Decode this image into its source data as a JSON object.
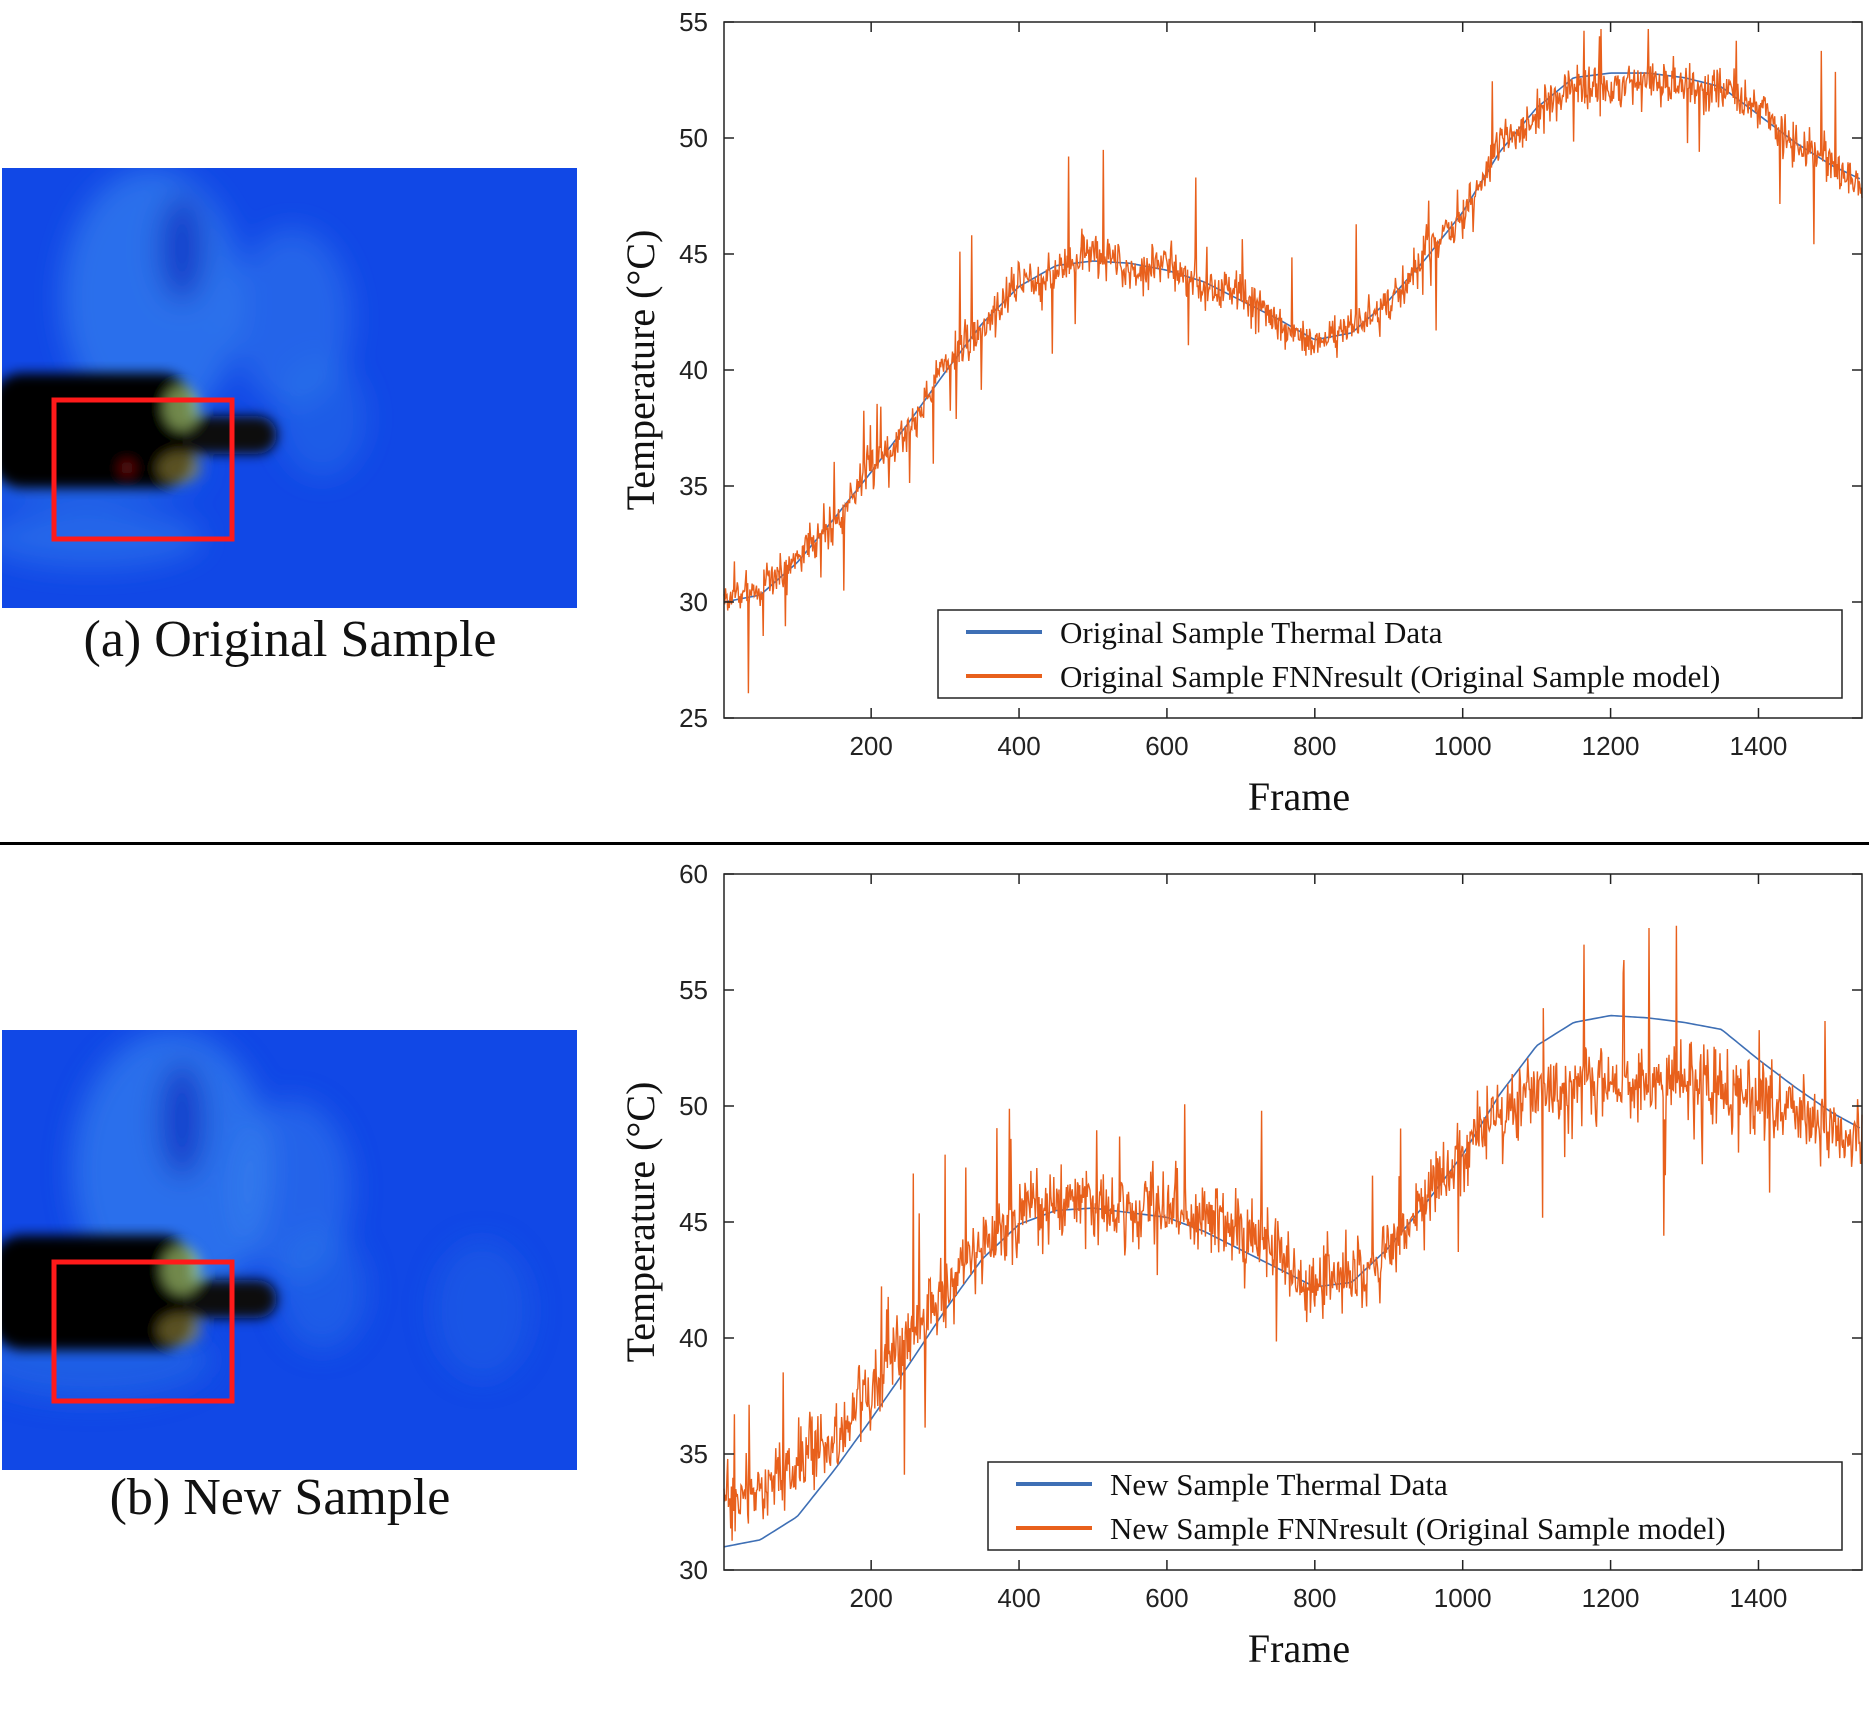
{
  "panels": {
    "a": {
      "caption": "(a) Original Sample"
    },
    "b": {
      "caption": "(b) New Sample"
    }
  },
  "chart_data": [
    {
      "type": "line",
      "title": "",
      "xlabel": "Frame",
      "ylabel": "Temperature (°C)",
      "xlim": [
        1,
        1540
      ],
      "ylim": [
        25,
        55
      ],
      "xticks": [
        200,
        400,
        600,
        800,
        1000,
        1200,
        1400
      ],
      "yticks": [
        25,
        30,
        35,
        40,
        45,
        50,
        55
      ],
      "legend_position": "bottom-right",
      "series": [
        {
          "name": "Original Sample Thermal Data",
          "color": "#3e6fb5",
          "x": [
            1,
            50,
            100,
            150,
            200,
            250,
            300,
            350,
            400,
            450,
            500,
            550,
            600,
            650,
            700,
            750,
            800,
            850,
            900,
            950,
            1000,
            1050,
            1100,
            1150,
            1200,
            1250,
            1300,
            1350,
            1400,
            1450,
            1500,
            1540
          ],
          "values": [
            30.0,
            30.3,
            31.7,
            33.6,
            35.6,
            37.7,
            39.9,
            42.0,
            43.6,
            44.5,
            44.7,
            44.6,
            44.3,
            43.8,
            43.0,
            42.2,
            41.3,
            41.6,
            43.0,
            44.8,
            46.8,
            49.4,
            51.3,
            52.6,
            52.8,
            52.8,
            52.6,
            52.2,
            51.0,
            49.8,
            48.8,
            48.2
          ]
        },
        {
          "name": "Original Sample FNNresult (Original Sample model)",
          "color": "#e8601c",
          "x": [
            1,
            50,
            100,
            150,
            200,
            250,
            300,
            350,
            400,
            450,
            500,
            550,
            600,
            650,
            700,
            750,
            800,
            850,
            900,
            950,
            1000,
            1050,
            1100,
            1150,
            1200,
            1250,
            1300,
            1350,
            1400,
            1450,
            1500,
            1540
          ],
          "values": [
            30.1,
            30.5,
            32.0,
            33.4,
            35.9,
            37.4,
            40.3,
            41.8,
            43.9,
            44.2,
            45.1,
            44.3,
            44.6,
            43.5,
            43.4,
            41.9,
            41.0,
            42.0,
            42.6,
            45.2,
            46.4,
            49.8,
            50.9,
            52.3,
            52.0,
            52.5,
            52.3,
            52.0,
            51.3,
            49.6,
            48.9,
            48.0
          ]
        }
      ]
    },
    {
      "type": "line",
      "title": "",
      "xlabel": "Frame",
      "ylabel": "Temperature (°C)",
      "xlim": [
        1,
        1540
      ],
      "ylim": [
        30,
        60
      ],
      "xticks": [
        200,
        400,
        600,
        800,
        1000,
        1200,
        1400
      ],
      "yticks": [
        30,
        35,
        40,
        45,
        50,
        55,
        60
      ],
      "legend_position": "bottom-right",
      "series": [
        {
          "name": "New Sample Thermal Data",
          "color": "#3e6fb5",
          "x": [
            1,
            50,
            100,
            150,
            200,
            250,
            300,
            350,
            400,
            450,
            500,
            550,
            600,
            650,
            700,
            750,
            800,
            850,
            900,
            950,
            1000,
            1050,
            1100,
            1150,
            1200,
            1250,
            1300,
            1350,
            1400,
            1450,
            1500,
            1540
          ],
          "values": [
            31.0,
            31.3,
            32.3,
            34.3,
            36.5,
            38.8,
            41.2,
            43.4,
            44.9,
            45.5,
            45.6,
            45.4,
            45.2,
            44.6,
            43.8,
            43.0,
            42.2,
            42.4,
            43.9,
            45.8,
            47.9,
            50.5,
            52.6,
            53.6,
            53.9,
            53.8,
            53.6,
            53.3,
            52.0,
            50.8,
            49.7,
            49.0
          ]
        },
        {
          "name": "New Sample FNNresult (Original Sample model)",
          "color": "#e8601c",
          "x": [
            1,
            50,
            100,
            150,
            200,
            250,
            300,
            350,
            400,
            450,
            500,
            550,
            600,
            650,
            700,
            750,
            800,
            850,
            900,
            950,
            1000,
            1050,
            1100,
            1150,
            1200,
            1250,
            1300,
            1350,
            1400,
            1450,
            1500,
            1540
          ],
          "values": [
            33.0,
            33.5,
            34.2,
            35.6,
            37.9,
            40.0,
            42.4,
            43.9,
            45.3,
            45.8,
            45.9,
            45.5,
            45.8,
            45.1,
            44.6,
            43.6,
            42.4,
            42.6,
            43.8,
            46.0,
            48.0,
            49.6,
            50.4,
            50.7,
            51.0,
            50.8,
            51.2,
            50.9,
            50.5,
            49.8,
            49.0,
            48.3
          ]
        }
      ]
    }
  ]
}
